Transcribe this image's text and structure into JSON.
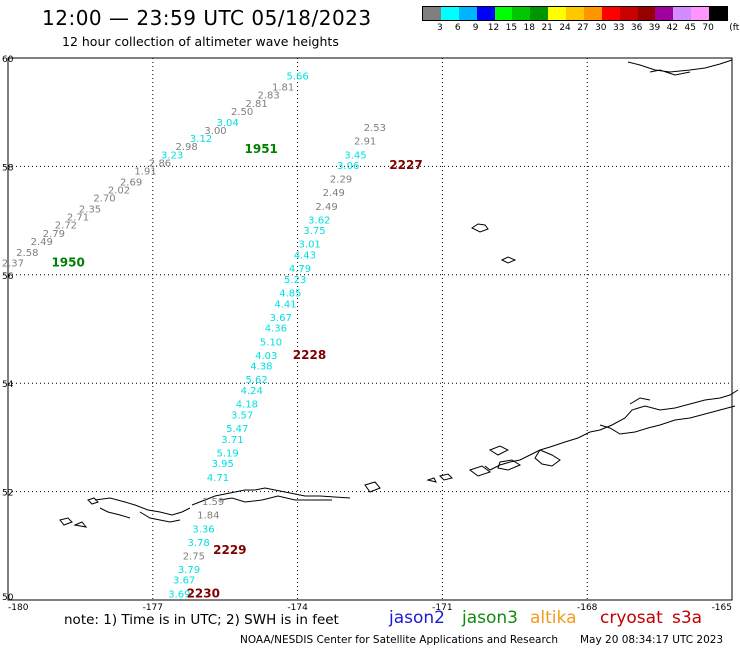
{
  "header": {
    "title": "12:00 — 23:59 UTC 05/18/2023",
    "subtitle": "12 hour collection of altimeter wave heights"
  },
  "legend": {
    "colors": [
      "#7f7f7f",
      "#00ffff",
      "#00b4ff",
      "#0000ff",
      "#00ff00",
      "#00c800",
      "#009600",
      "#ffff00",
      "#ffc800",
      "#ff9600",
      "#ff0000",
      "#c80000",
      "#960000",
      "#a000a0",
      "#d28cff",
      "#ff96ff",
      "#000000"
    ],
    "ticks": [
      "3",
      "6",
      "9",
      "12",
      "15",
      "18",
      "21",
      "24",
      "27",
      "30",
      "33",
      "36",
      "39",
      "42",
      "45",
      "70"
    ],
    "unit": "(ft)"
  },
  "map": {
    "lon_labels": [
      "-180",
      "-177",
      "-174",
      "-171",
      "-168",
      "-165"
    ],
    "lat_labels": [
      "50",
      "52",
      "54",
      "56",
      "58",
      "60"
    ]
  },
  "tracks": [
    {
      "name": "1950-1951",
      "labels": [
        {
          "time": "1950",
          "lon": -179.1,
          "lat": 56.15,
          "color": "#008000"
        },
        {
          "time": "1951",
          "lon": -175.1,
          "lat": 58.25,
          "color": "#008000"
        }
      ],
      "points": [
        {
          "v": "2.37",
          "lon": -179.9,
          "lat": 56.15,
          "c": "#7f7f7f"
        },
        {
          "v": "2.58",
          "lon": -179.6,
          "lat": 56.35,
          "c": "#7f7f7f"
        },
        {
          "v": "2.49",
          "lon": -179.3,
          "lat": 56.55,
          "c": "#7f7f7f"
        },
        {
          "v": "2.79",
          "lon": -179.05,
          "lat": 56.7,
          "c": "#7f7f7f"
        },
        {
          "v": "2.72",
          "lon": -178.8,
          "lat": 56.85,
          "c": "#7f7f7f"
        },
        {
          "v": "2.71",
          "lon": -178.55,
          "lat": 57.0,
          "c": "#7f7f7f"
        },
        {
          "v": "2.35",
          "lon": -178.3,
          "lat": 57.15,
          "c": "#7f7f7f"
        },
        {
          "v": "2.70",
          "lon": -178.0,
          "lat": 57.35,
          "c": "#7f7f7f"
        },
        {
          "v": "2.02",
          "lon": -177.7,
          "lat": 57.5,
          "c": "#7f7f7f"
        },
        {
          "v": "2.69",
          "lon": -177.45,
          "lat": 57.65,
          "c": "#7f7f7f"
        },
        {
          "v": "1.91",
          "lon": -177.15,
          "lat": 57.85,
          "c": "#7f7f7f"
        },
        {
          "v": "2.86",
          "lon": -176.85,
          "lat": 58.0,
          "c": "#7f7f7f"
        },
        {
          "v": "3.23",
          "lon": -176.6,
          "lat": 58.15,
          "c": "#00e0e0"
        },
        {
          "v": "2.98",
          "lon": -176.3,
          "lat": 58.3,
          "c": "#7f7f7f"
        },
        {
          "v": "3.12",
          "lon": -176.0,
          "lat": 58.45,
          "c": "#00e0e0"
        },
        {
          "v": "3.00",
          "lon": -175.7,
          "lat": 58.6,
          "c": "#7f7f7f"
        },
        {
          "v": "3.04",
          "lon": -175.45,
          "lat": 58.75,
          "c": "#00e0e0"
        },
        {
          "v": "2.50",
          "lon": -175.15,
          "lat": 58.95,
          "c": "#7f7f7f"
        },
        {
          "v": "2.81",
          "lon": -174.85,
          "lat": 59.1,
          "c": "#7f7f7f"
        },
        {
          "v": "2.83",
          "lon": -174.6,
          "lat": 59.25,
          "c": "#7f7f7f"
        },
        {
          "v": "1.81",
          "lon": -174.3,
          "lat": 59.4,
          "c": "#7f7f7f"
        },
        {
          "v": "5.66",
          "lon": -174.0,
          "lat": 59.6,
          "c": "#00e0e0"
        }
      ]
    },
    {
      "name": "2227-2230",
      "labels": [
        {
          "time": "2227",
          "lon": -172.1,
          "lat": 57.95,
          "color": "#800000"
        },
        {
          "time": "2228",
          "lon": -174.1,
          "lat": 54.45,
          "color": "#800000"
        },
        {
          "time": "2229",
          "lon": -175.75,
          "lat": 50.85,
          "color": "#800000"
        },
        {
          "time": "2230",
          "lon": -176.3,
          "lat": 50.05,
          "color": "#800000"
        }
      ],
      "points": [
        {
          "v": "2.53",
          "lon": -172.4,
          "lat": 58.65,
          "c": "#7f7f7f"
        },
        {
          "v": "2.91",
          "lon": -172.6,
          "lat": 58.4,
          "c": "#7f7f7f"
        },
        {
          "v": "3.45",
          "lon": -172.8,
          "lat": 58.15,
          "c": "#00e0e0"
        },
        {
          "v": "3.06",
          "lon": -172.95,
          "lat": 57.95,
          "c": "#00e0e0"
        },
        {
          "v": "2.29",
          "lon": -173.1,
          "lat": 57.7,
          "c": "#7f7f7f"
        },
        {
          "v": "2.49",
          "lon": -173.25,
          "lat": 57.45,
          "c": "#7f7f7f"
        },
        {
          "v": "2.49",
          "lon": -173.4,
          "lat": 57.2,
          "c": "#7f7f7f"
        },
        {
          "v": "3.62",
          "lon": -173.55,
          "lat": 56.95,
          "c": "#00e0e0"
        },
        {
          "v": "3.75",
          "lon": -173.65,
          "lat": 56.75,
          "c": "#00e0e0"
        },
        {
          "v": "3.01",
          "lon": -173.75,
          "lat": 56.5,
          "c": "#00e0e0"
        },
        {
          "v": "4.43",
          "lon": -173.85,
          "lat": 56.3,
          "c": "#00e0e0"
        },
        {
          "v": "4.79",
          "lon": -173.95,
          "lat": 56.05,
          "c": "#00e0e0"
        },
        {
          "v": "5.23",
          "lon": -174.05,
          "lat": 55.85,
          "c": "#00e0e0"
        },
        {
          "v": "4.85",
          "lon": -174.15,
          "lat": 55.6,
          "c": "#00e0e0"
        },
        {
          "v": "4.41",
          "lon": -174.25,
          "lat": 55.4,
          "c": "#00e0e0"
        },
        {
          "v": "3.67",
          "lon": -174.35,
          "lat": 55.15,
          "c": "#00e0e0"
        },
        {
          "v": "4.36",
          "lon": -174.45,
          "lat": 54.95,
          "c": "#00e0e0"
        },
        {
          "v": "5.10",
          "lon": -174.55,
          "lat": 54.7,
          "c": "#00e0e0"
        },
        {
          "v": "4.03",
          "lon": -174.65,
          "lat": 54.45,
          "c": "#00e0e0"
        },
        {
          "v": "4.38",
          "lon": -174.75,
          "lat": 54.25,
          "c": "#00e0e0"
        },
        {
          "v": "5.62",
          "lon": -174.85,
          "lat": 54.0,
          "c": "#00e0e0"
        },
        {
          "v": "4.24",
          "lon": -174.95,
          "lat": 53.8,
          "c": "#00e0e0"
        },
        {
          "v": "4.18",
          "lon": -175.05,
          "lat": 53.55,
          "c": "#00e0e0"
        },
        {
          "v": "3.57",
          "lon": -175.15,
          "lat": 53.35,
          "c": "#00e0e0"
        },
        {
          "v": "5.47",
          "lon": -175.25,
          "lat": 53.1,
          "c": "#00e0e0"
        },
        {
          "v": "3.71",
          "lon": -175.35,
          "lat": 52.9,
          "c": "#00e0e0"
        },
        {
          "v": "5.19",
          "lon": -175.45,
          "lat": 52.65,
          "c": "#00e0e0"
        },
        {
          "v": "3.95",
          "lon": -175.55,
          "lat": 52.45,
          "c": "#00e0e0"
        },
        {
          "v": "4.71",
          "lon": -175.65,
          "lat": 52.2,
          "c": "#00e0e0"
        },
        {
          "v": "1.59",
          "lon": -175.75,
          "lat": 51.75,
          "c": "#7f7f7f"
        },
        {
          "v": "1.84",
          "lon": -175.85,
          "lat": 51.5,
          "c": "#7f7f7f"
        },
        {
          "v": "3.36",
          "lon": -175.95,
          "lat": 51.25,
          "c": "#00e0e0"
        },
        {
          "v": "3.78",
          "lon": -176.05,
          "lat": 51.0,
          "c": "#00e0e0"
        },
        {
          "v": "2.75",
          "lon": -176.15,
          "lat": 50.75,
          "c": "#7f7f7f"
        },
        {
          "v": "3.79",
          "lon": -176.25,
          "lat": 50.5,
          "c": "#00e0e0"
        },
        {
          "v": "3.67",
          "lon": -176.35,
          "lat": 50.3,
          "c": "#00e0e0"
        },
        {
          "v": "3.69",
          "lon": -176.45,
          "lat": 50.05,
          "c": "#00e0e0"
        }
      ]
    }
  ],
  "footer": {
    "note": "note: 1) Time is in UTC; 2) SWH is in feet",
    "credit": "NOAA/NESDIS Center for Satellite Applications and Research",
    "timestamp": "May 20 08:34:17 UTC 2023"
  },
  "satellites": [
    {
      "name": "jason2",
      "color": "#1b1bd8"
    },
    {
      "name": "jason3",
      "color": "#0f8a0f"
    },
    {
      "name": "altika",
      "color": "#f39a1b"
    },
    {
      "name": "cryosat",
      "color": "#c00000"
    },
    {
      "name": "s3a",
      "color": "#c00000"
    }
  ]
}
